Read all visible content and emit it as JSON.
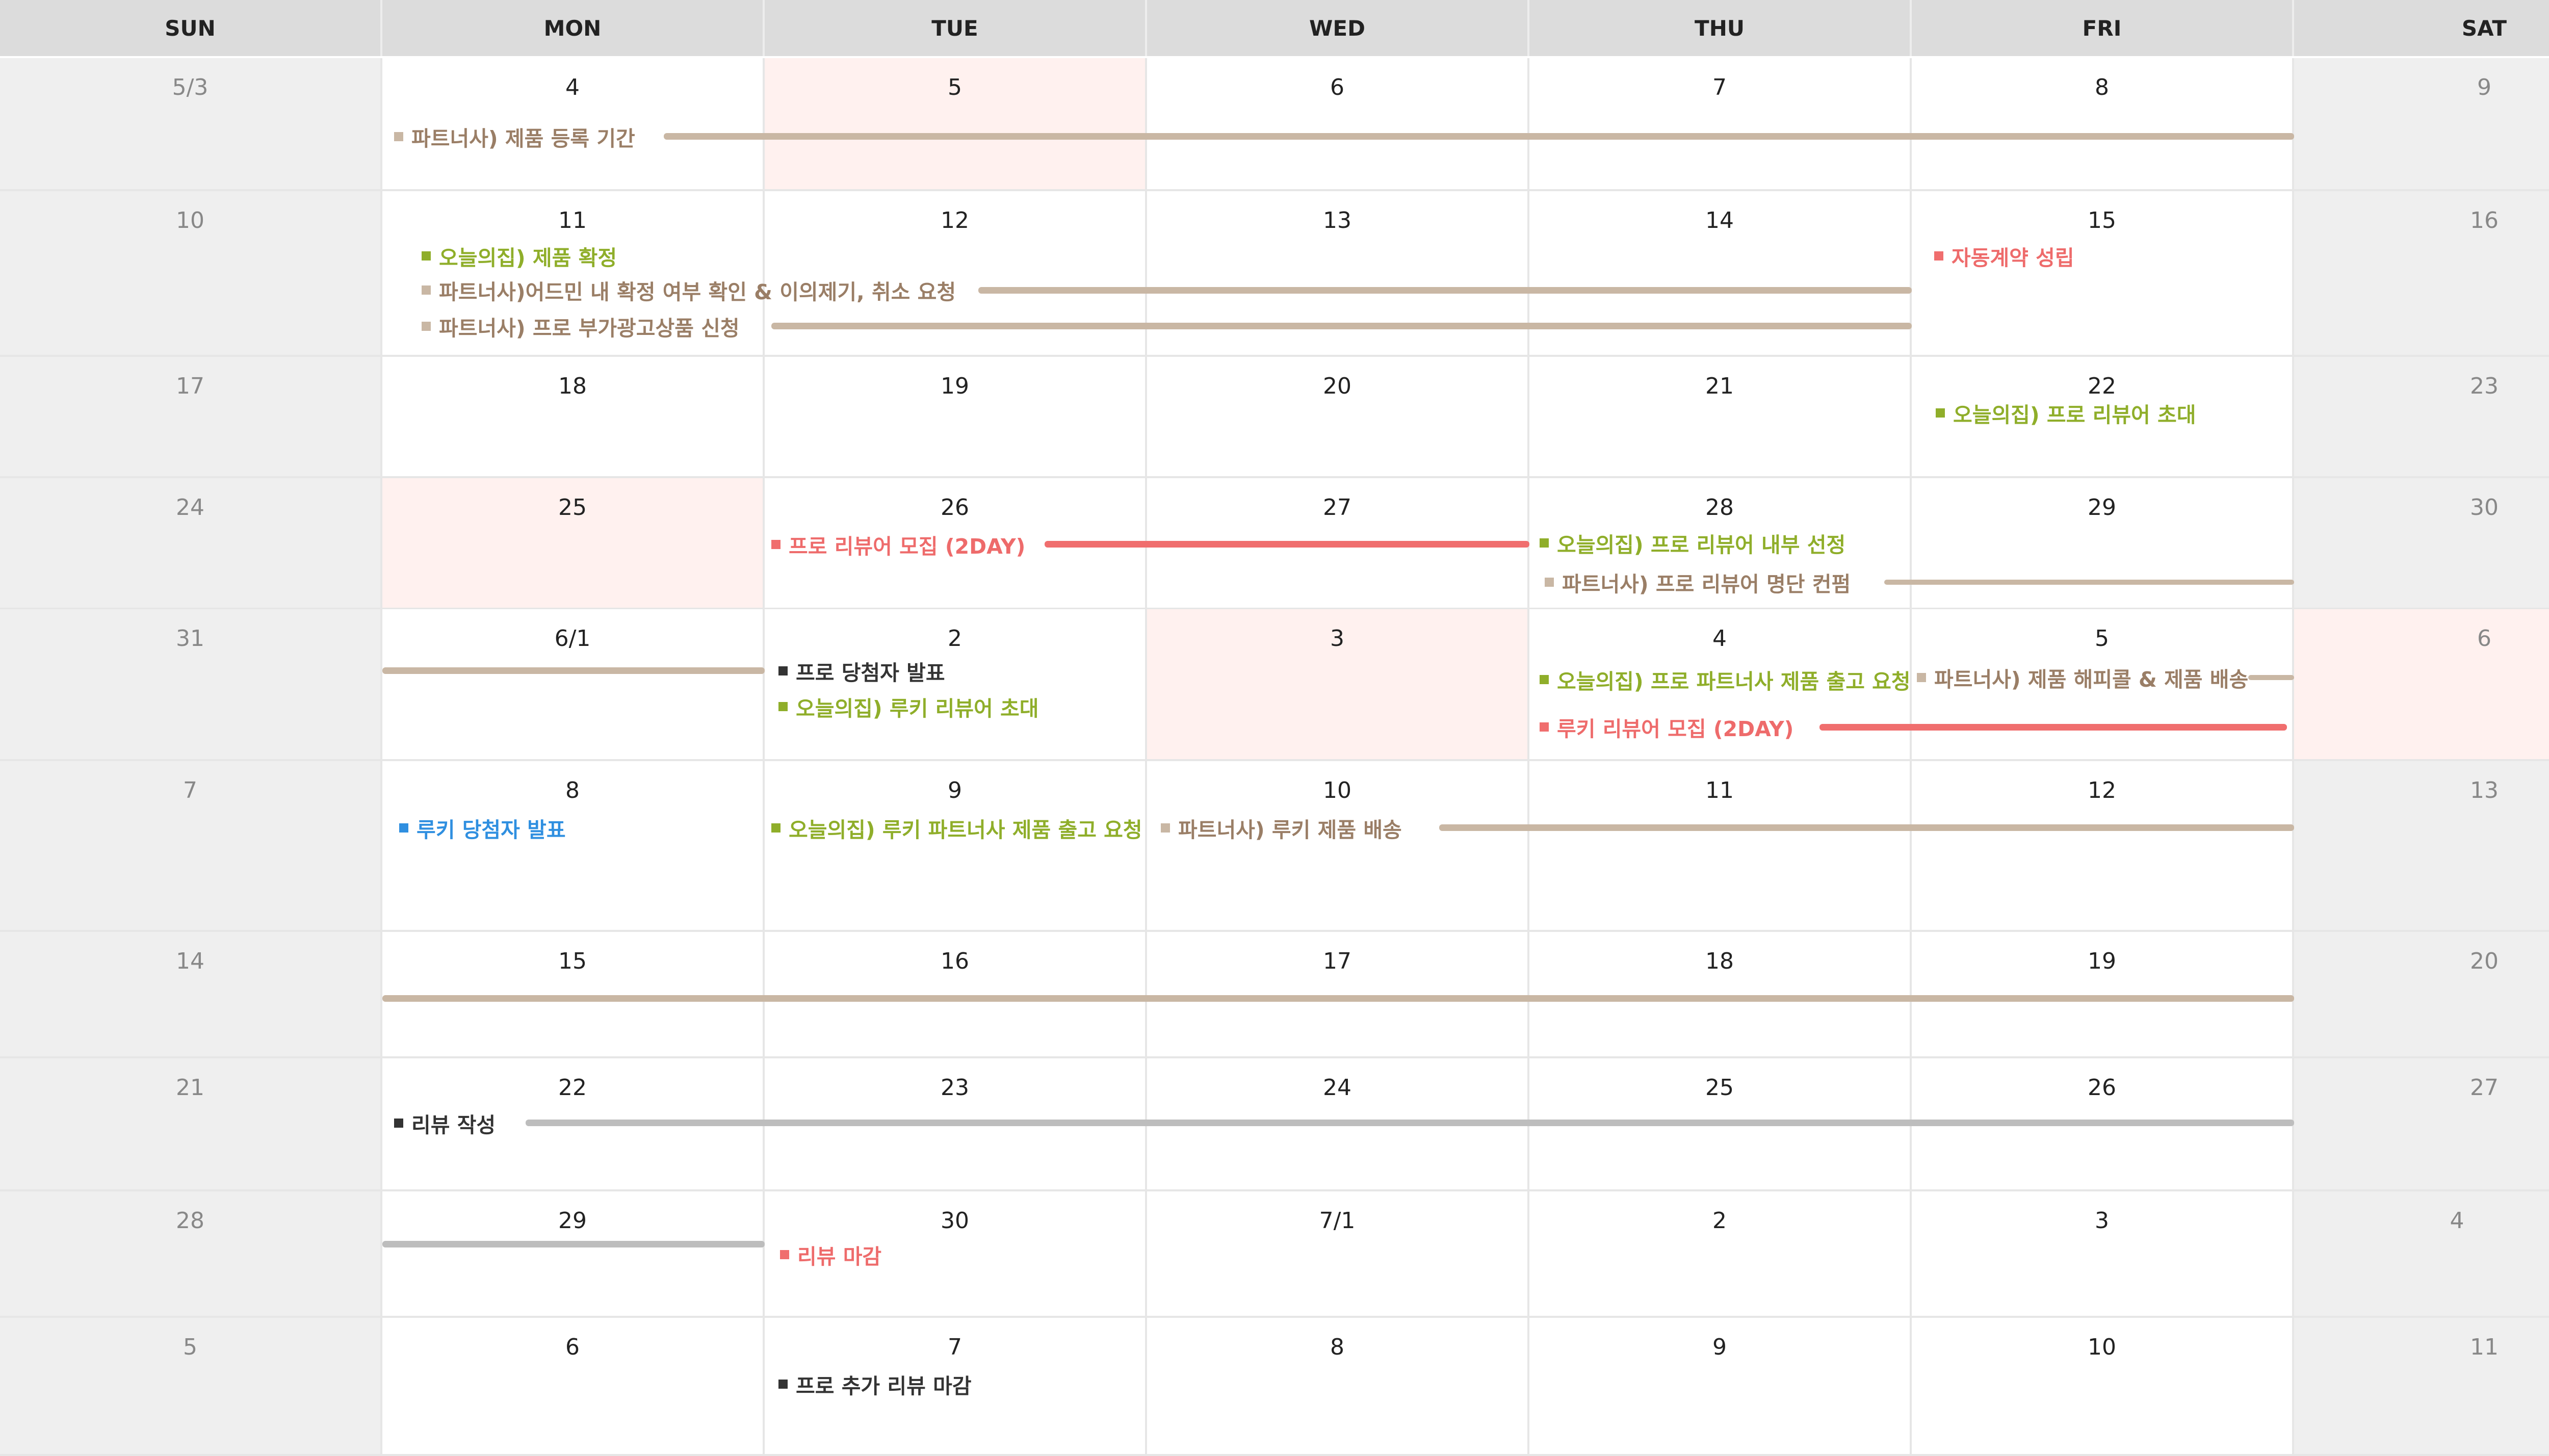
{
  "colors": {
    "tan": "#c9b7a4",
    "tan_text": "#9a7e66",
    "green": "#8fae2a",
    "red": "#f06e6e",
    "red_text": "#ee6b6b",
    "blue": "#2f8fe0",
    "dark": "#333333",
    "gray": "#bdbdbd",
    "highlight": "#fff1ef"
  },
  "weekdays": [
    "SUN",
    "MON",
    "TUE",
    "WED",
    "THU",
    "FRI",
    "SAT"
  ],
  "weeks": [
    [
      "5/3",
      "4",
      "5",
      "6",
      "7",
      "8",
      "9"
    ],
    [
      "10",
      "11",
      "12",
      "13",
      "14",
      "15",
      "16"
    ],
    [
      "17",
      "18",
      "19",
      "20",
      "21",
      "22",
      "23"
    ],
    [
      "24",
      "25",
      "26",
      "27",
      "28",
      "29",
      "30"
    ],
    [
      "31",
      "6/1",
      "2",
      "3",
      "4",
      "5",
      "6"
    ],
    [
      "7",
      "8",
      "9",
      "10",
      "11",
      "12",
      "13"
    ],
    [
      "14",
      "15",
      "16",
      "17",
      "18",
      "19",
      "20"
    ],
    [
      "21",
      "22",
      "23",
      "24",
      "25",
      "26",
      "27"
    ],
    [
      "28",
      "29",
      "30",
      "7/1",
      "2",
      "3",
      "4"
    ],
    [
      "5",
      "6",
      "7",
      "8",
      "9",
      "10",
      "11"
    ]
  ],
  "highlighted_days": [
    "5",
    "25",
    "3",
    "6"
  ],
  "events": [
    {
      "text": "파트너사) 제품 등록 기간",
      "color": "tan"
    },
    {
      "text": "오늘의집) 제품 확정",
      "color": "green"
    },
    {
      "text": "파트너사)어드민 내 확정 여부 확인 & 이의제기, 취소 요청",
      "color": "tan"
    },
    {
      "text": "파트너사) 프로 부가광고상품 신청",
      "color": "tan"
    },
    {
      "text": "자동계약 성립",
      "color": "red"
    },
    {
      "text": "오늘의집) 프로 리뷰어 초대",
      "color": "green"
    },
    {
      "text": "프로 리뷰어 모집 (2DAY)",
      "color": "red"
    },
    {
      "text": "오늘의집) 프로 리뷰어 내부 선정",
      "color": "green"
    },
    {
      "text": "파트너사) 프로 리뷰어 명단 컨펌",
      "color": "tan"
    },
    {
      "text": "프로 당첨자 발표",
      "color": "dark"
    },
    {
      "text": "오늘의집) 루키 리뷰어 초대",
      "color": "green"
    },
    {
      "text": "오늘의집) 프로 파트너사 제품 출고 요청",
      "color": "green"
    },
    {
      "text": "파트너사) 제품 해피콜 & 제품 배송",
      "color": "tan"
    },
    {
      "text": "루키 리뷰어 모집 (2DAY)",
      "color": "red"
    },
    {
      "text": "루키 당첨자 발표",
      "color": "blue"
    },
    {
      "text": "오늘의집) 루키 파트너사 제품 출고 요청",
      "color": "green"
    },
    {
      "text": "파트너사) 루키 제품 배송",
      "color": "tan"
    },
    {
      "text": "리뷰 작성",
      "color": "dark"
    },
    {
      "text": "리뷰 마감",
      "color": "red"
    },
    {
      "text": "프로 추가 리뷰 마감",
      "color": "dark"
    }
  ]
}
